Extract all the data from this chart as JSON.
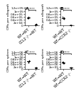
{
  "panels": [
    {
      "label": "A",
      "ylabel": "CMs per allograft",
      "ylim": [
        0,
        125000.0
      ],
      "yticks": [
        0,
        20000.0,
        40000.0,
        60000.0,
        80000.0,
        100000.0,
        120000.0
      ],
      "groups": [
        "WT→WT",
        "CCL2⁻/⁻→WT"
      ],
      "group1_vals": [
        52000,
        55000,
        50000,
        58000
      ],
      "group2_vals": [
        8000,
        5000,
        6000,
        7000,
        4500,
        9000
      ],
      "sig": "****",
      "dot_colors": [
        "black",
        "black"
      ]
    },
    {
      "label": "B",
      "ylabel": "CMs per allograft",
      "ylim": [
        0,
        125000.0
      ],
      "yticks": [
        0,
        20000.0,
        40000.0,
        60000.0,
        80000.0,
        100000.0,
        120000.0
      ],
      "groups": [
        "WT→WT",
        "WT→CCR2⁻/⁻"
      ],
      "group1_vals": [
        50000,
        55000,
        45000,
        60000,
        48000,
        52000
      ],
      "group2_vals": [
        2000,
        1500,
        1000,
        1200,
        800,
        1800,
        2200,
        1600
      ],
      "sig": "****",
      "dot_colors": [
        "black",
        "black"
      ],
      "g2_filled": true
    },
    {
      "label": "C",
      "ylabel": "CMs per spleen",
      "ylim": [
        0,
        1500000.0
      ],
      "yticks": [
        0,
        200000.0,
        400000.0,
        600000.0,
        800000.0,
        1000000.0,
        1200000.0,
        1400000.0
      ],
      "groups": [
        "WT→WT",
        "CCL2⁻/⁻→WT"
      ],
      "group1_vals": [
        600000,
        650000,
        550000,
        680000
      ],
      "group2_vals": [
        120000,
        100000,
        80000,
        90000,
        110000,
        95000
      ],
      "sig": "****",
      "dot_colors": [
        "black",
        "black"
      ]
    },
    {
      "label": "D",
      "ylabel": "CMs per spleen",
      "ylim": [
        0,
        1500000.0
      ],
      "yticks": [
        0,
        200000.0,
        400000.0,
        600000.0,
        800000.0,
        1000000.0,
        1200000.0,
        1400000.0
      ],
      "groups": [
        "WT→WT",
        "WT→CCR2⁻/⁻"
      ],
      "group1_vals": [
        500000,
        600000,
        450000,
        580000
      ],
      "group2_vals": [
        120000,
        100000,
        90000,
        110000
      ],
      "sig": "****",
      "dot_colors": [
        "black",
        "black"
      ]
    }
  ],
  "bg_color": "#ffffff",
  "fontsize": 3.5,
  "tick_fontsize": 3.0,
  "label_fontsize": 3.2
}
